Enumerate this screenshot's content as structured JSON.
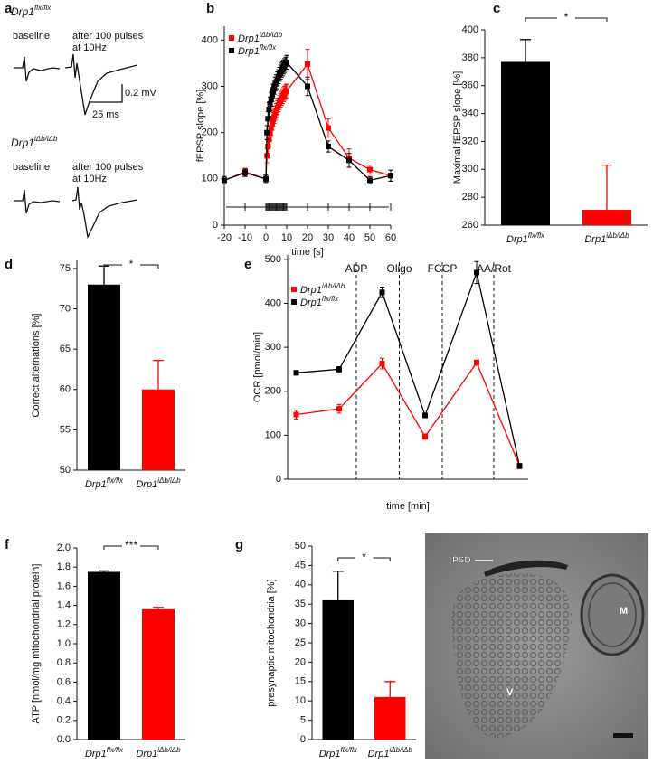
{
  "panel_labels": [
    "a",
    "b",
    "c",
    "d",
    "e",
    "f",
    "g"
  ],
  "panel_a": {
    "traces": [
      {
        "genotype": "Drp1",
        "genotype_superscript": "flx/flx",
        "labels": [
          "baseline",
          "after 100 pulses",
          "at 10Hz"
        ]
      },
      {
        "genotype": "Drp1",
        "genotype_superscript": "iΔb/iΔb",
        "labels": [
          "baseline",
          "after 100 pulses",
          "at 10Hz"
        ]
      }
    ],
    "scale_y": "0.2 mV",
    "scale_x": "25 ms"
  },
  "micrograph": {
    "labels": [
      "PSD",
      "M",
      "V"
    ]
  },
  "chart_data": [
    {
      "type": "line",
      "xlabel": "time [s]",
      "ylabel": "fEPSP slope [%]",
      "xlim": [
        -20,
        60
      ],
      "ylim": [
        0,
        430
      ],
      "xticks": [
        -20,
        -10,
        0,
        10,
        20,
        30,
        40,
        50,
        60
      ],
      "yticks": [
        0,
        100,
        200,
        300,
        400
      ],
      "legend": "top-left",
      "x": [
        -20,
        -10,
        0,
        0.5,
        1,
        1.5,
        2,
        2.5,
        3,
        3.5,
        4,
        4.5,
        5,
        5.5,
        6,
        6.5,
        7,
        7.5,
        8,
        8.5,
        9,
        9.5,
        10,
        20,
        30,
        40,
        50,
        60
      ],
      "series": [
        {
          "name": "Drp1",
          "name_superscript": "iΔb/iΔb",
          "color": "#ff0000",
          "values": [
            97,
            115,
            100,
            150,
            170,
            185,
            198,
            210,
            220,
            228,
            235,
            242,
            248,
            254,
            260,
            265,
            270,
            274,
            278,
            282,
            285,
            288,
            290,
            348,
            210,
            145,
            120,
            107
          ],
          "errors": [
            8,
            8,
            8,
            15,
            15,
            15,
            15,
            15,
            15,
            15,
            15,
            15,
            15,
            15,
            15,
            15,
            15,
            15,
            15,
            15,
            15,
            15,
            15,
            32,
            20,
            20,
            10,
            12
          ]
        },
        {
          "name": "Drp1",
          "name_superscript": "flx/flx",
          "color": "#000000",
          "values": [
            97,
            113,
            100,
            200,
            230,
            250,
            262,
            272,
            282,
            290,
            298,
            305,
            310,
            316,
            321,
            326,
            331,
            335,
            338,
            342,
            345,
            348,
            352,
            300,
            170,
            140,
            97,
            107
          ],
          "errors": [
            8,
            8,
            8,
            15,
            15,
            15,
            15,
            15,
            15,
            15,
            15,
            15,
            15,
            15,
            15,
            15,
            15,
            15,
            15,
            15,
            15,
            15,
            15,
            20,
            12,
            15,
            8,
            12
          ]
        }
      ]
    },
    {
      "type": "bar",
      "ylabel": "Maximal fEPSP slope [%]",
      "categories": [
        "Drp1",
        "Drp1"
      ],
      "category_superscripts": [
        "flx/flx",
        "iΔb/iΔb"
      ],
      "values": [
        377,
        271
      ],
      "errors": [
        16,
        32
      ],
      "colors": [
        "#000000",
        "#ff0000"
      ],
      "ylim": [
        260,
        400
      ],
      "yticks": [
        260,
        280,
        300,
        320,
        340,
        360,
        380,
        400
      ],
      "significance": "*"
    },
    {
      "type": "bar",
      "ylabel": "Correct alternations [%]",
      "categories": [
        "Drp1",
        "Drp1"
      ],
      "category_superscripts": [
        "flx/flx",
        "iΔb/iΔb"
      ],
      "values": [
        73,
        60
      ],
      "errors": [
        2.3,
        3.6
      ],
      "colors": [
        "#000000",
        "#ff0000"
      ],
      "ylim": [
        50,
        76
      ],
      "yticks": [
        50,
        55,
        60,
        65,
        70,
        75
      ],
      "significance": "*"
    },
    {
      "type": "line",
      "xlabel": "time [min]",
      "ylabel": "OCR [pmol/min]",
      "xlim": [
        0,
        28
      ],
      "ylim": [
        0,
        510
      ],
      "yticks": [
        0,
        100,
        200,
        300,
        400,
        500
      ],
      "legend": "top-left",
      "x": [
        1,
        6,
        11,
        16,
        22,
        27
      ],
      "annotations": [
        {
          "x": 8,
          "label": "ADP"
        },
        {
          "x": 13,
          "label": "Oligo"
        },
        {
          "x": 18,
          "label": "FCCP"
        },
        {
          "x": 24,
          "label": "AA/Rot"
        }
      ],
      "series": [
        {
          "name": "Drp1",
          "name_superscript": "iΔb/iΔb",
          "color": "#ff0000",
          "values": [
            147,
            160,
            263,
            97,
            265,
            30
          ],
          "errors": [
            10,
            10,
            12,
            6,
            6,
            6
          ]
        },
        {
          "name": "Drp1",
          "name_superscript": "flx/flx",
          "color": "#000000",
          "values": [
            242,
            250,
            425,
            145,
            470,
            30
          ],
          "errors": [
            5,
            6,
            12,
            4,
            25,
            5
          ]
        }
      ]
    },
    {
      "type": "bar",
      "ylabel": "ATP [nmol/mg mitochondrial protein]",
      "categories": [
        "Drp1",
        "Drp1"
      ],
      "category_superscripts": [
        "flx/flx",
        "iΔb/iΔb"
      ],
      "values": [
        1.75,
        1.36
      ],
      "errors": [
        0.01,
        0.02
      ],
      "colors": [
        "#000000",
        "#ff0000"
      ],
      "ylim": [
        0,
        2
      ],
      "yticks": [
        {
          "value": 0,
          "label": "0.0"
        },
        0.2,
        0.4,
        0.6,
        0.8,
        {
          "value": 1,
          "label": "1.0"
        },
        1.2,
        1.4,
        1.6,
        1.8,
        {
          "value": 2,
          "label": "2.0"
        }
      ],
      "significance": "***"
    },
    {
      "type": "bar",
      "ylabel": "presynaptic mitochondria [%]",
      "categories": [
        "Drp1",
        "Drp1"
      ],
      "category_superscripts": [
        "flx/flx",
        "iΔb/iΔb"
      ],
      "values": [
        36,
        11
      ],
      "errors": [
        7.5,
        4
      ],
      "colors": [
        "#000000",
        "#ff0000"
      ],
      "ylim": [
        0,
        50
      ],
      "yticks": [
        0,
        5,
        10,
        15,
        20,
        25,
        30,
        35,
        40,
        45,
        50
      ],
      "significance": "*"
    }
  ]
}
